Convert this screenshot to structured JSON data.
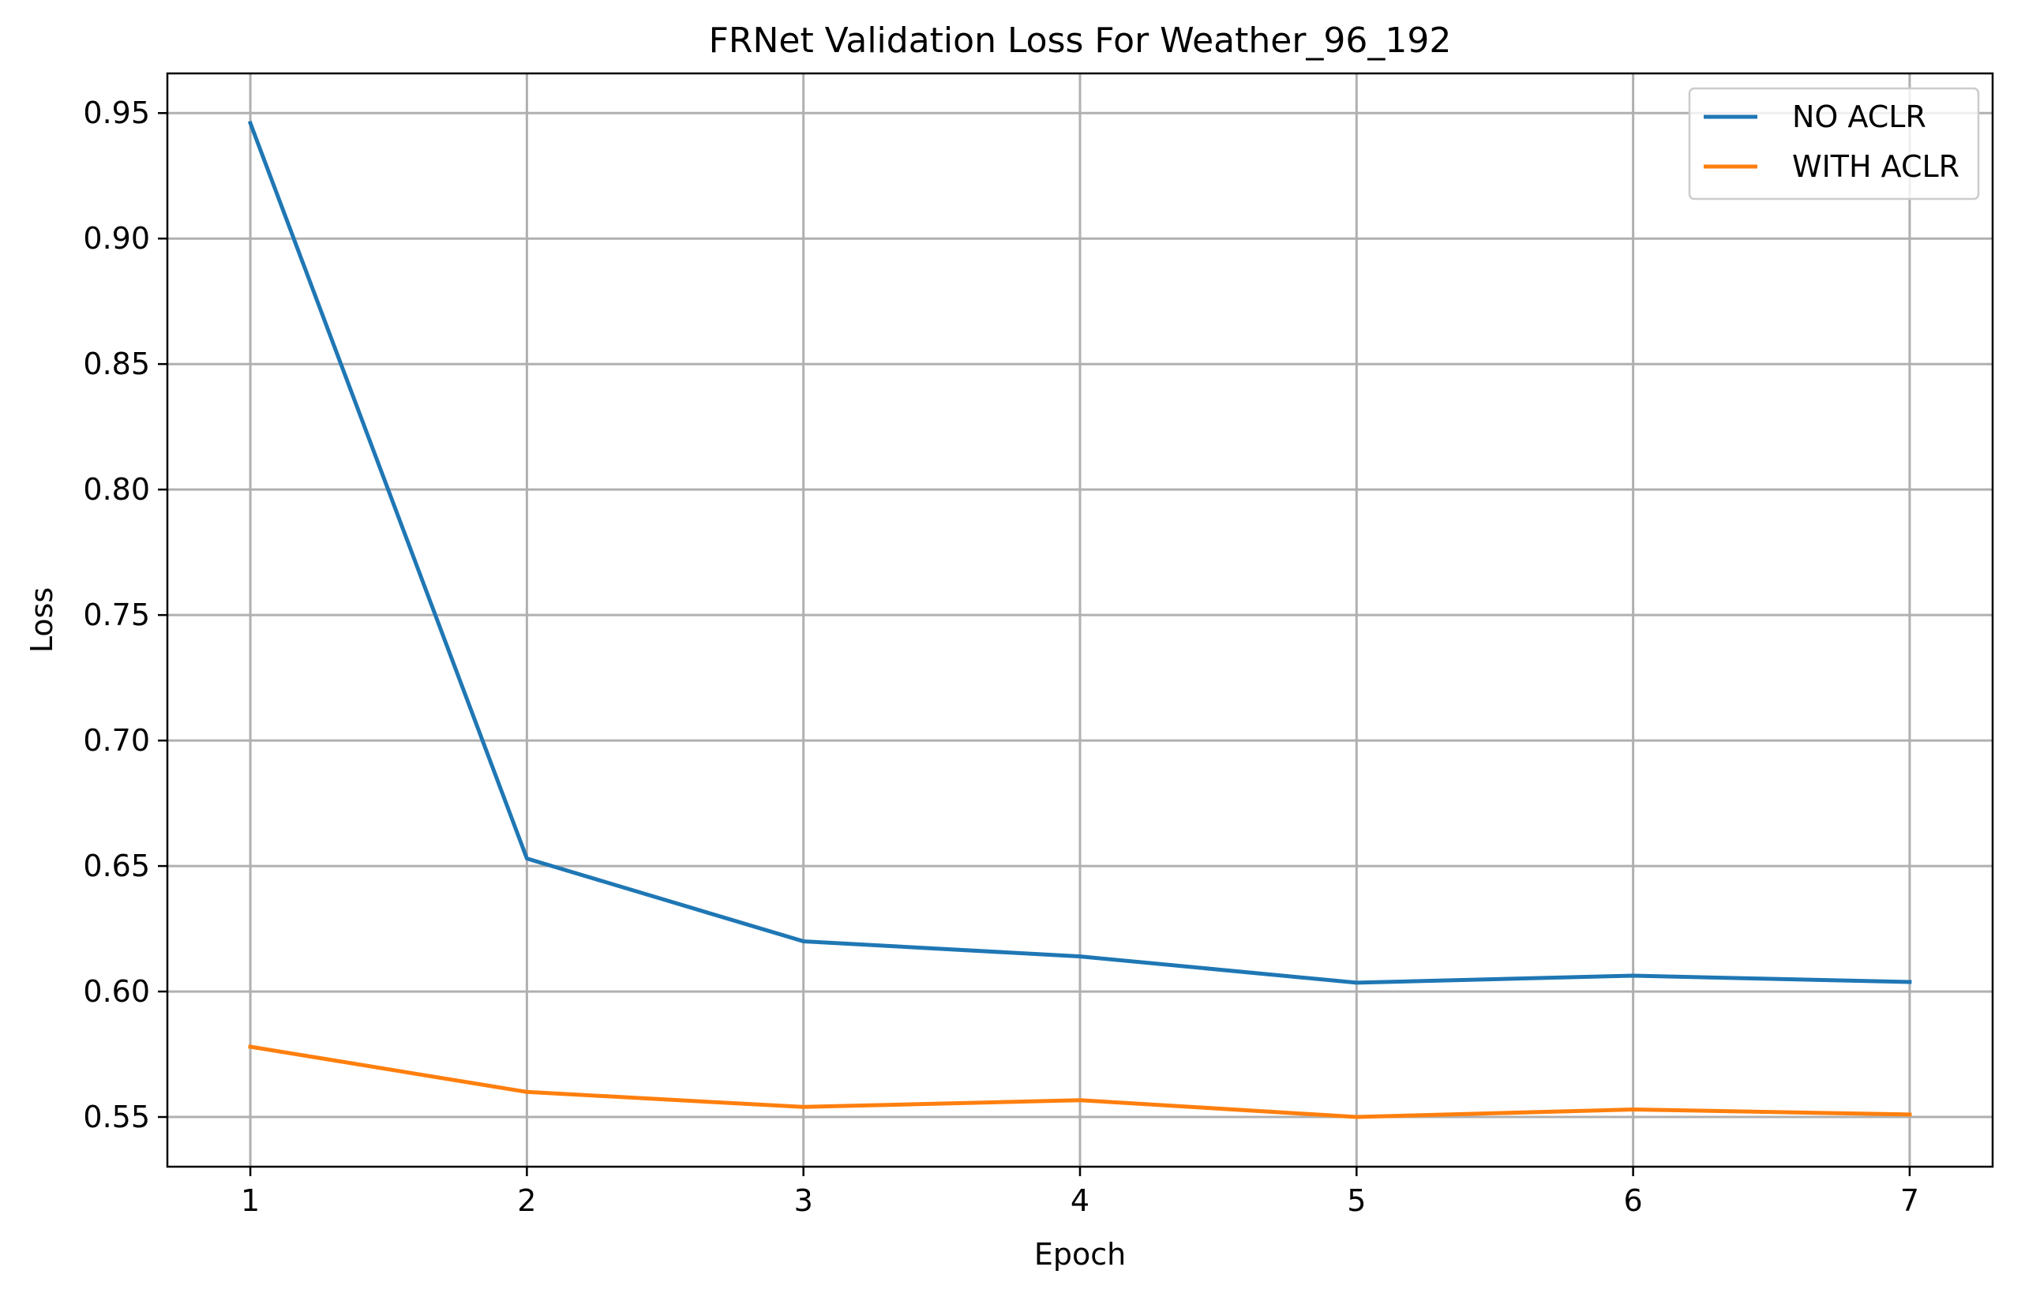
{
  "chart_data": {
    "type": "line",
    "title": "FRNet Validation Loss For Weather_96_192",
    "xlabel": "Epoch",
    "ylabel": "Loss",
    "x": [
      1,
      2,
      3,
      4,
      5,
      6,
      7
    ],
    "xticks": [
      "1",
      "2",
      "3",
      "4",
      "5",
      "6",
      "7"
    ],
    "yticks": [
      "0.55",
      "0.60",
      "0.65",
      "0.70",
      "0.75",
      "0.80",
      "0.85",
      "0.90",
      "0.95"
    ],
    "ytick_values": [
      0.55,
      0.6,
      0.65,
      0.7,
      0.75,
      0.8,
      0.85,
      0.9,
      0.95
    ],
    "xlim": [
      0.7,
      7.3
    ],
    "ylim": [
      0.5302,
      0.9658
    ],
    "grid": true,
    "legend_position": "top-right",
    "series": [
      {
        "name": "NO ACLR",
        "color": "#1f77b4",
        "values": [
          0.946,
          0.653,
          0.62,
          0.614,
          0.6035,
          0.6063,
          0.6038
        ]
      },
      {
        "name": "WITH ACLR",
        "color": "#ff7f0e",
        "values": [
          0.578,
          0.56,
          0.554,
          0.5567,
          0.55,
          0.553,
          0.551
        ]
      }
    ]
  }
}
